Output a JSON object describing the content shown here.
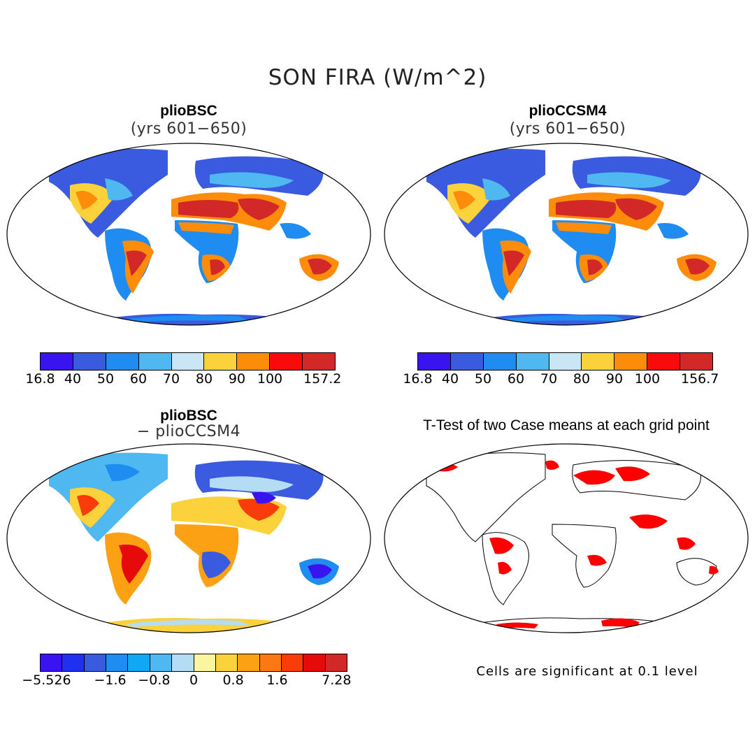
{
  "title": "SON FIRA (W/m^2)",
  "panels": [
    {
      "id": "bsc",
      "title": "plioBSC",
      "subtitle": "(yrs 601−650)"
    },
    {
      "id": "ccsm4",
      "title": "plioCCSM4",
      "subtitle": "(yrs 601−650)"
    },
    {
      "id": "diff",
      "title": "plioBSC",
      "subtitle": "− plioCCSM4"
    },
    {
      "id": "ttest",
      "title": "T-Test of two Case means at each grid point",
      "subtitle": ""
    }
  ],
  "colorbars": {
    "mean_colors": [
      "#3a14f0",
      "#3a5ae0",
      "#1e8cf0",
      "#50b8f0",
      "#c8e6f5",
      "#fcd23c",
      "#fc8c0a",
      "#fa0a0a",
      "#d22828"
    ],
    "bsc_ticks": [
      "16.8",
      "40",
      "50",
      "60",
      "70",
      "80",
      "90",
      "100",
      "157.2"
    ],
    "ccsm4_ticks": [
      "16.8",
      "40",
      "50",
      "60",
      "70",
      "80",
      "90",
      "100",
      "156.7"
    ],
    "diff_colors": [
      "#3a14f0",
      "#2030f0",
      "#3a5ae0",
      "#1e8cf0",
      "#10a8f5",
      "#50b8f0",
      "#b4dcf5",
      "#fcf5a0",
      "#fcd23c",
      "#fca014",
      "#fc7814",
      "#fa3c0a",
      "#e60a0a",
      "#d22828"
    ],
    "diff_ticks": [
      "−5.526",
      "−1.6",
      "−0.8",
      "0",
      "0.8",
      "1.6",
      "7.28"
    ]
  },
  "significance_note": "Cells are significant at 0.1 level",
  "significance_color": "#ff0000"
}
